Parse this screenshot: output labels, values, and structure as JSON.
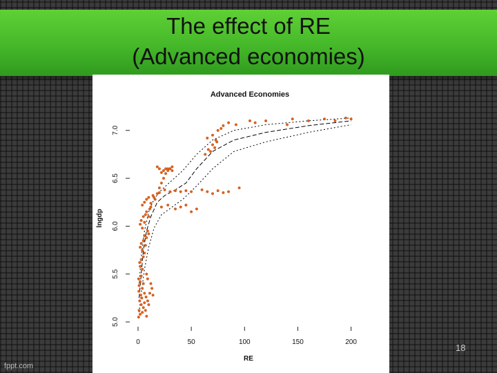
{
  "slide": {
    "title_line1": "The effect of RE",
    "title_line2": "(Advanced economies)",
    "page_number": "18",
    "footer_brand": "fppt.com"
  },
  "colors": {
    "title_band": "#4fc12f",
    "points": "#e0621c",
    "curves": "#000000"
  },
  "chart_data": {
    "type": "scatter",
    "title": "Advanced Economies",
    "xlabel": "RE",
    "ylabel": "lngdp",
    "xlim": [
      0,
      210
    ],
    "ylim": [
      4.95,
      7.15
    ],
    "x_ticks": [
      "0",
      "50",
      "100",
      "150",
      "200"
    ],
    "y_ticks": [
      "5.0",
      "5.5",
      "6.0",
      "6.5",
      "7.0"
    ],
    "grid": false,
    "series": [
      {
        "values": [
          [
            0.5,
            5.05
          ],
          [
            1,
            5.12
          ],
          [
            2,
            5.08
          ],
          [
            3,
            5.18
          ],
          [
            4,
            5.1
          ],
          [
            1.5,
            5.22
          ],
          [
            2.5,
            5.28
          ],
          [
            0.8,
            5.32
          ],
          [
            3.5,
            5.25
          ],
          [
            5,
            5.15
          ],
          [
            6,
            5.2
          ],
          [
            7,
            5.12
          ],
          [
            8,
            5.06
          ],
          [
            1,
            5.38
          ],
          [
            2,
            5.42
          ],
          [
            0.5,
            5.45
          ],
          [
            4,
            5.35
          ],
          [
            3,
            5.48
          ],
          [
            5,
            5.4
          ],
          [
            6,
            5.3
          ],
          [
            7.5,
            5.26
          ],
          [
            9,
            5.22
          ],
          [
            10,
            5.18
          ],
          [
            11,
            5.3
          ],
          [
            12,
            5.4
          ],
          [
            13,
            5.35
          ],
          [
            14,
            5.28
          ],
          [
            9,
            5.45
          ],
          [
            8,
            5.5
          ],
          [
            4,
            5.55
          ],
          [
            2,
            5.58
          ],
          [
            1.5,
            5.62
          ],
          [
            3,
            5.65
          ],
          [
            5,
            5.68
          ],
          [
            6,
            5.72
          ],
          [
            4,
            5.75
          ],
          [
            2,
            5.78
          ],
          [
            3,
            5.82
          ],
          [
            5,
            5.85
          ],
          [
            6,
            5.9
          ],
          [
            7,
            5.8
          ],
          [
            8,
            5.88
          ],
          [
            9,
            5.95
          ],
          [
            10,
            5.92
          ],
          [
            4,
            5.98
          ],
          [
            2,
            6.02
          ],
          [
            3,
            6.06
          ],
          [
            5,
            6.1
          ],
          [
            6,
            6.04
          ],
          [
            7,
            6.12
          ],
          [
            8,
            6.15
          ],
          [
            10,
            6.1
          ],
          [
            11,
            6.18
          ],
          [
            12,
            6.2
          ],
          [
            4,
            6.22
          ],
          [
            6,
            6.25
          ],
          [
            8,
            6.28
          ],
          [
            10,
            6.3
          ],
          [
            12,
            6.24
          ],
          [
            14,
            6.32
          ],
          [
            15,
            6.3
          ],
          [
            16,
            6.28
          ],
          [
            18,
            6.34
          ],
          [
            20,
            6.4
          ],
          [
            22,
            6.45
          ],
          [
            24,
            6.5
          ],
          [
            26,
            6.55
          ],
          [
            28,
            6.58
          ],
          [
            30,
            6.6
          ],
          [
            32,
            6.62
          ],
          [
            18,
            6.62
          ],
          [
            20,
            6.6
          ],
          [
            22,
            6.56
          ],
          [
            24,
            6.58
          ],
          [
            26,
            6.6
          ],
          [
            28,
            6.6
          ],
          [
            30,
            6.6
          ],
          [
            32,
            6.58
          ],
          [
            20,
            6.35
          ],
          [
            25,
            6.38
          ],
          [
            30,
            6.36
          ],
          [
            35,
            6.37
          ],
          [
            40,
            6.36
          ],
          [
            45,
            6.37
          ],
          [
            50,
            6.36
          ],
          [
            22,
            6.2
          ],
          [
            28,
            6.22
          ],
          [
            35,
            6.18
          ],
          [
            40,
            6.2
          ],
          [
            45,
            6.22
          ],
          [
            50,
            6.15
          ],
          [
            55,
            6.18
          ],
          [
            60,
            6.38
          ],
          [
            65,
            6.36
          ],
          [
            70,
            6.34
          ],
          [
            75,
            6.37
          ],
          [
            80,
            6.35
          ],
          [
            85,
            6.36
          ],
          [
            95,
            6.4
          ],
          [
            63,
            6.75
          ],
          [
            66,
            6.8
          ],
          [
            68,
            6.78
          ],
          [
            70,
            6.85
          ],
          [
            72,
            6.82
          ],
          [
            74,
            6.88
          ],
          [
            65,
            6.92
          ],
          [
            70,
            6.95
          ],
          [
            73,
            6.9
          ],
          [
            75,
            7.0
          ],
          [
            78,
            7.02
          ],
          [
            80,
            7.05
          ],
          [
            85,
            7.08
          ],
          [
            92,
            7.06
          ],
          [
            105,
            7.1
          ],
          [
            110,
            7.08
          ],
          [
            120,
            7.1
          ],
          [
            140,
            7.06
          ],
          [
            145,
            7.12
          ],
          [
            160,
            7.1
          ],
          [
            175,
            7.12
          ],
          [
            185,
            7.1
          ],
          [
            195,
            7.13
          ],
          [
            200,
            7.12
          ]
        ]
      },
      {
        "values": [
          [
            1,
            5.25
          ],
          [
            3,
            5.5
          ],
          [
            5,
            5.75
          ],
          [
            8,
            5.95
          ],
          [
            12,
            6.1
          ],
          [
            18,
            6.25
          ],
          [
            25,
            6.32
          ],
          [
            35,
            6.38
          ],
          [
            45,
            6.45
          ],
          [
            55,
            6.6
          ],
          [
            70,
            6.78
          ],
          [
            90,
            6.9
          ],
          [
            120,
            6.98
          ],
          [
            160,
            7.05
          ],
          [
            200,
            7.1
          ]
        ]
      },
      {
        "values": [
          [
            1,
            5.4
          ],
          [
            3,
            5.68
          ],
          [
            6,
            5.95
          ],
          [
            10,
            6.15
          ],
          [
            15,
            6.28
          ],
          [
            22,
            6.38
          ],
          [
            32,
            6.48
          ],
          [
            42,
            6.58
          ],
          [
            55,
            6.75
          ],
          [
            70,
            6.9
          ],
          [
            90,
            7.0
          ],
          [
            120,
            7.06
          ],
          [
            160,
            7.1
          ],
          [
            200,
            7.13
          ]
        ]
      },
      {
        "values": [
          [
            1,
            5.1
          ],
          [
            3,
            5.3
          ],
          [
            6,
            5.55
          ],
          [
            10,
            5.78
          ],
          [
            15,
            5.98
          ],
          [
            22,
            6.12
          ],
          [
            32,
            6.2
          ],
          [
            42,
            6.28
          ],
          [
            55,
            6.42
          ],
          [
            70,
            6.6
          ],
          [
            90,
            6.78
          ],
          [
            120,
            6.88
          ],
          [
            160,
            6.98
          ],
          [
            200,
            7.06
          ]
        ]
      }
    ]
  }
}
